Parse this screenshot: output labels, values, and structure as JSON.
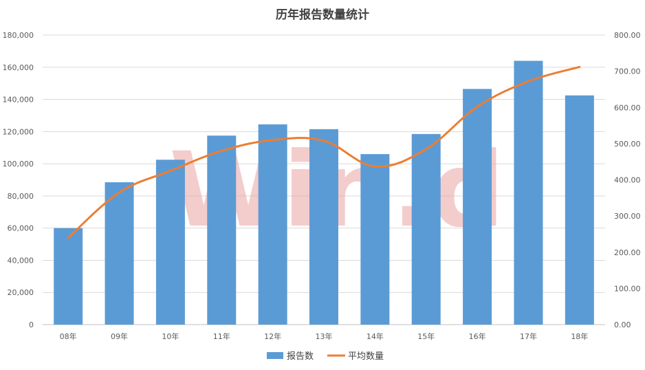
{
  "chart_data": {
    "type": "bar",
    "title": "历年报告数量统计",
    "categories": [
      "08年",
      "09年",
      "10年",
      "11年",
      "12年",
      "13年",
      "14年",
      "15年",
      "16年",
      "17年",
      "18年"
    ],
    "series": [
      {
        "name": "报告数",
        "type": "bar",
        "axis": "left",
        "color": "#5b9bd5",
        "values": [
          60000,
          88500,
          102500,
          117500,
          124500,
          121500,
          106000,
          118500,
          146500,
          164000,
          142500
        ]
      },
      {
        "name": "平均数量",
        "type": "line",
        "axis": "right",
        "color": "#ed7d31",
        "values": [
          240,
          365,
          425,
          480,
          510,
          508,
          437,
          485,
          602,
          672,
          712
        ]
      }
    ],
    "y_left": {
      "min": 0,
      "max": 180000,
      "ticks": [
        "0",
        "20,000",
        "40,000",
        "60,000",
        "80,000",
        "100,000",
        "120,000",
        "140,000",
        "160,000",
        "180,000"
      ]
    },
    "y_right": {
      "min": 0,
      "max": 800,
      "ticks": [
        "0.00",
        "100.00",
        "200.00",
        "300.00",
        "400.00",
        "500.00",
        "600.00",
        "700.00",
        "800.00"
      ]
    },
    "grid": true,
    "legend_position": "bottom",
    "watermark": "Win.d"
  }
}
